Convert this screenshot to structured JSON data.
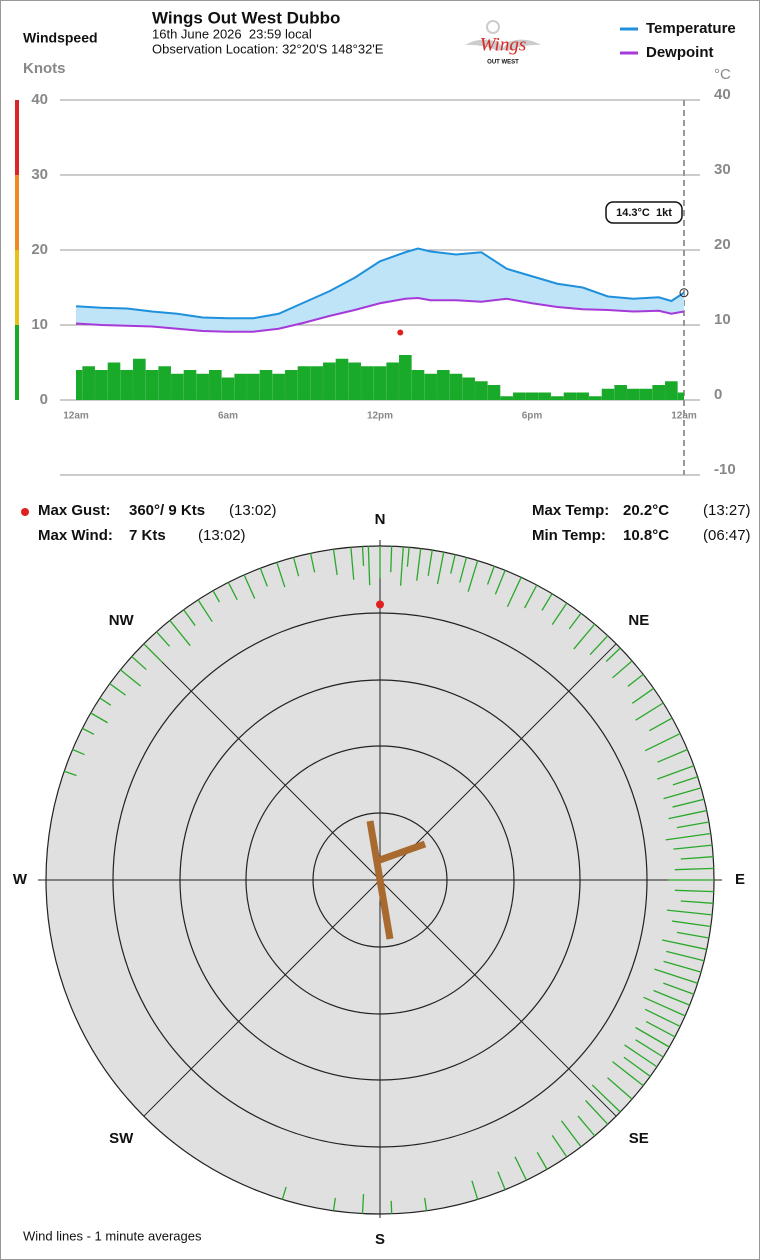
{
  "chart_data": [
    {
      "type": "timeseries",
      "title": "Wings Out West Dubbo",
      "subtitle": [
        "16th June 2026  23:59 local",
        "Observation Location: 32°20'S 148°32'E"
      ],
      "ylabel": "Windspeed",
      "yunit": "Knots",
      "y2unit": "°C",
      "x": [
        0,
        1,
        2,
        3,
        4,
        5,
        6,
        7,
        8,
        9,
        10,
        11,
        12,
        13,
        13.5,
        14,
        15,
        16,
        17,
        18,
        19,
        20,
        21,
        22,
        23,
        23.5,
        24
      ],
      "series": [
        {
          "name": "Temperature",
          "color": "#1e90dc",
          "axis": "y2",
          "values": [
            12.5,
            12.3,
            12.2,
            11.8,
            11.5,
            11,
            10.9,
            10.9,
            11.5,
            13,
            14.5,
            16.3,
            18.5,
            19.7,
            20.2,
            19.8,
            19.4,
            19.7,
            17.5,
            16.5,
            15.5,
            15,
            13.8,
            13.5,
            13.7,
            13.2,
            14.3
          ]
        },
        {
          "name": "Dewpoint",
          "color": "#a63ad8",
          "axis": "y2",
          "values": [
            10.2,
            10,
            9.9,
            9.8,
            9.5,
            9.2,
            9.1,
            9.1,
            9.5,
            10.3,
            11.2,
            12,
            12.9,
            13.5,
            13.6,
            13.3,
            13.3,
            13.1,
            13.5,
            12.9,
            12.4,
            12.1,
            12,
            11.8,
            11.9,
            11.5,
            11.8
          ]
        }
      ],
      "fill_color": "#bfe3f7",
      "wind": {
        "color": "#1aaa2a",
        "x": [
          0,
          0.5,
          1,
          1.5,
          2,
          2.5,
          3,
          3.5,
          4,
          4.5,
          5,
          5.5,
          6,
          6.5,
          7,
          7.5,
          8,
          8.5,
          9,
          9.5,
          10,
          10.5,
          11,
          11.5,
          12,
          12.5,
          13,
          13.5,
          14,
          14.5,
          15,
          15.5,
          16,
          16.5,
          17,
          17.5,
          18,
          18.5,
          19,
          19.5,
          20,
          20.5,
          21,
          21.5,
          22,
          22.5,
          23,
          23.5,
          24
        ],
        "values": [
          4,
          4.5,
          4,
          5,
          4,
          5.5,
          4,
          4.5,
          3.5,
          4,
          3.5,
          4,
          3,
          3.5,
          3.5,
          4,
          3.5,
          4,
          4.5,
          4.5,
          5,
          5.5,
          5,
          4.5,
          4.5,
          5,
          6,
          4,
          3.5,
          4,
          3.5,
          3,
          2.5,
          2,
          0.5,
          1,
          1,
          1,
          0.5,
          1,
          1,
          0.5,
          1.5,
          2,
          1.5,
          1.5,
          2,
          2.5,
          1
        ]
      },
      "max_gust": {
        "x": 12.8,
        "value": 9,
        "color": "#e02020"
      },
      "annotation": "14.3°C  1kt",
      "xlim": [
        0,
        24
      ],
      "xticks": [
        {
          "value": 0,
          "label": "12am"
        },
        {
          "value": 6,
          "label": "6am"
        },
        {
          "value": 12,
          "label": "12pm"
        },
        {
          "value": 18,
          "label": "6pm"
        },
        {
          "value": 24,
          "label": "12am"
        }
      ],
      "ylim": [
        0,
        40
      ],
      "yticks": [
        0,
        10,
        20,
        30,
        40
      ],
      "y2lim": [
        -10,
        40
      ],
      "y2ticks": [
        -10,
        0,
        10,
        20,
        30,
        40
      ],
      "band_colors": [
        "#1aaa2a",
        "#e8c21a",
        "#f08a24",
        "#d8262a"
      ],
      "grid": true
    },
    {
      "type": "polar",
      "compass": [
        "N",
        "NE",
        "E",
        "SE",
        "S",
        "SW",
        "W",
        "NW"
      ],
      "color": "#2aa82a",
      "directions": [
        352,
        355,
        357,
        358,
        0,
        2,
        4,
        5,
        7,
        9,
        11,
        13,
        15,
        17,
        20,
        22,
        25,
        28,
        31,
        34,
        37,
        40,
        43,
        46,
        49,
        52,
        55,
        58,
        61,
        64,
        67,
        70,
        72,
        74,
        76,
        78,
        80,
        82,
        84,
        86,
        88,
        90,
        92,
        94,
        96,
        98,
        100,
        102,
        104,
        106,
        108,
        110,
        112,
        114,
        116,
        118,
        120,
        122,
        124,
        126,
        128,
        131,
        134,
        137,
        140,
        143,
        146,
        150,
        154,
        158,
        163,
        172,
        178,
        183,
        188,
        197,
        289,
        293,
        297,
        300,
        303,
        306,
        309,
        312,
        315,
        318,
        321,
        324,
        327,
        330,
        333,
        336,
        339,
        342,
        345,
        348
      ],
      "speeds": [
        4,
        5,
        3,
        6,
        5,
        4,
        6,
        3,
        5,
        4,
        5,
        3,
        4,
        5,
        3,
        4,
        5,
        4,
        3,
        4,
        3,
        5,
        4,
        3,
        4,
        3,
        4,
        5,
        4,
        6,
        5,
        6,
        4,
        6,
        5,
        6,
        5,
        7,
        6,
        5,
        6,
        7,
        6,
        5,
        7,
        6,
        5,
        7,
        6,
        6,
        7,
        5,
        6,
        7,
        6,
        5,
        6,
        5,
        6,
        5,
        6,
        5,
        6,
        5,
        4,
        5,
        4,
        3,
        4,
        3,
        3,
        2,
        2,
        3,
        2,
        2,
        2,
        2,
        2,
        3,
        2,
        3,
        4,
        3,
        4,
        3,
        5,
        3,
        4,
        2,
        3,
        4,
        3,
        4,
        3,
        3
      ],
      "max_gust": {
        "direction": 360,
        "speed": 9,
        "color": "#e02020"
      },
      "note": "Wind lines - 1 minute averages"
    }
  ],
  "logo": {
    "text": "Wings",
    "subtext": "OUT WEST"
  },
  "stats": [
    [
      "Max Gust:",
      "360°/ 9 Kts",
      "(13:02)"
    ],
    [
      "Max Wind:",
      "7 Kts",
      "(13:02)"
    ],
    [
      "Max Temp:",
      "20.2°C",
      "(13:27)"
    ],
    [
      "Min Temp:",
      "10.8°C",
      "(06:47)"
    ]
  ]
}
